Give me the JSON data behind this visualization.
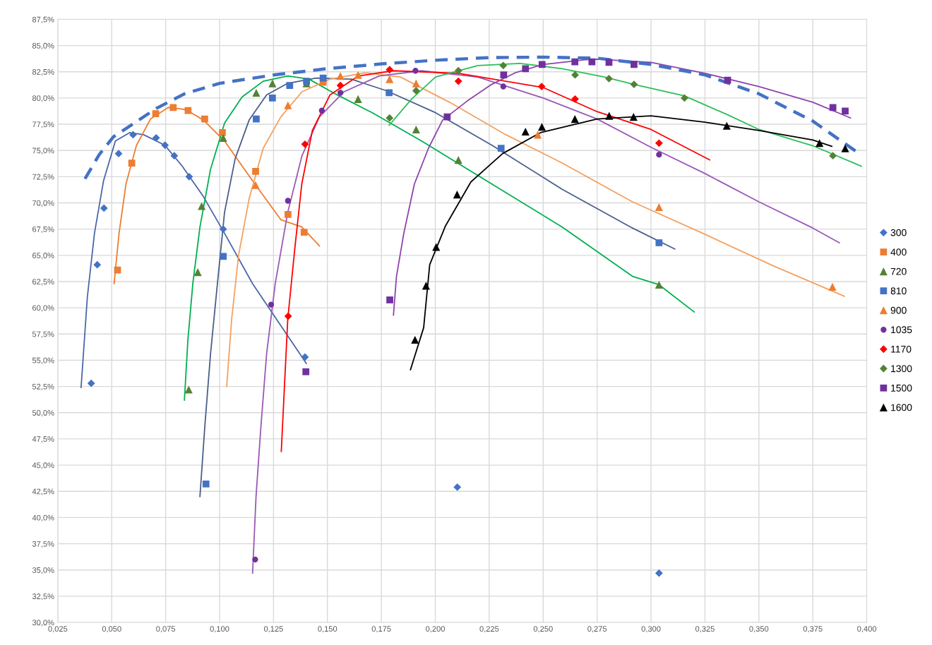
{
  "chart_data": {
    "type": "scatter",
    "grid": true,
    "legend": "right",
    "xlim": [
      0.025,
      0.4
    ],
    "xticks": [
      {
        "value": 0.025,
        "label": "0,025"
      },
      {
        "value": 0.05,
        "label": "0,050"
      },
      {
        "value": 0.075,
        "label": "0,075"
      },
      {
        "value": 0.1,
        "label": "0,100"
      },
      {
        "value": 0.125,
        "label": "0,125"
      },
      {
        "value": 0.15,
        "label": "0,150"
      },
      {
        "value": 0.175,
        "label": "0,175"
      },
      {
        "value": 0.2,
        "label": "0,200"
      },
      {
        "value": 0.225,
        "label": "0,225"
      },
      {
        "value": 0.25,
        "label": "0,250"
      },
      {
        "value": 0.275,
        "label": "0,275"
      },
      {
        "value": 0.3,
        "label": "0,300"
      },
      {
        "value": 0.325,
        "label": "0,325"
      },
      {
        "value": 0.35,
        "label": "0,350"
      },
      {
        "value": 0.375,
        "label": "0,375"
      },
      {
        "value": 0.4,
        "label": "0,400"
      }
    ],
    "ylim": [
      30,
      87.5
    ],
    "yticks": [
      {
        "value": 30,
        "label": "30,0%"
      },
      {
        "value": 32.5,
        "label": "32,5%"
      },
      {
        "value": 35,
        "label": "35,0%"
      },
      {
        "value": 37.5,
        "label": "37,5%"
      },
      {
        "value": 40,
        "label": "40,0%"
      },
      {
        "value": 42.5,
        "label": "42,5%"
      },
      {
        "value": 45,
        "label": "45,0%"
      },
      {
        "value": 47.5,
        "label": "47,5%"
      },
      {
        "value": 50,
        "label": "50,0%"
      },
      {
        "value": 52.5,
        "label": "52,5%"
      },
      {
        "value": 55,
        "label": "55,0%"
      },
      {
        "value": 57.5,
        "label": "57,5%"
      },
      {
        "value": 60,
        "label": "60,0%"
      },
      {
        "value": 62.5,
        "label": "62,5%"
      },
      {
        "value": 65,
        "label": "65,0%"
      },
      {
        "value": 67.5,
        "label": "67,5%"
      },
      {
        "value": 70,
        "label": "70,0%"
      },
      {
        "value": 72.5,
        "label": "72,5%"
      },
      {
        "value": 75,
        "label": "75,0%"
      },
      {
        "value": 77.5,
        "label": "77,5%"
      },
      {
        "value": 80,
        "label": "80,0%"
      },
      {
        "value": 82.5,
        "label": "82,5%"
      },
      {
        "value": 85,
        "label": "85,0%"
      },
      {
        "value": 87.5,
        "label": "87,5%"
      }
    ],
    "series": [
      {
        "type": "line",
        "color": "#4a67a8",
        "marker": "none",
        "x": [
          0.0358,
          0.0387,
          0.042,
          0.0462,
          0.0517,
          0.0583,
          0.0648,
          0.0746,
          0.0827,
          0.0925,
          0.1023,
          0.1153,
          0.1284,
          0.1402
        ],
        "values": [
          52.4,
          61.0,
          67.1,
          72.1,
          75.9,
          76.7,
          76.5,
          75.5,
          73.5,
          70.6,
          67.1,
          62.3,
          58.3,
          54.7
        ]
      },
      {
        "type": "line",
        "color": "#ed7d31",
        "marker": "none",
        "x": [
          0.0511,
          0.0534,
          0.0566,
          0.0615,
          0.068,
          0.0762,
          0.0843,
          0.0925,
          0.1023,
          0.1153,
          0.1284,
          0.1381,
          0.1463
        ],
        "values": [
          62.3,
          67.1,
          71.8,
          75.5,
          78.0,
          79.1,
          78.9,
          77.9,
          75.9,
          72.1,
          68.4,
          67.7,
          65.9
        ]
      },
      {
        "type": "line",
        "color": "#00b050",
        "marker": "none",
        "x": [
          0.0837,
          0.0853,
          0.0876,
          0.0909,
          0.0958,
          0.1023,
          0.1104,
          0.1202,
          0.1316,
          0.1414,
          0.1545,
          0.1708,
          0.1936,
          0.2262,
          0.2588,
          0.2914,
          0.3037,
          0.32
        ],
        "values": [
          51.2,
          56.9,
          62.3,
          67.7,
          73.2,
          77.6,
          80.1,
          81.6,
          82.1,
          81.8,
          80.3,
          78.6,
          75.9,
          71.8,
          67.7,
          63.0,
          62.2,
          59.6
        ]
      },
      {
        "type": "line",
        "color": "#4a5f8c",
        "marker": "none",
        "x": [
          0.0909,
          0.0932,
          0.0958,
          0.099,
          0.1023,
          0.1072,
          0.1137,
          0.1218,
          0.1316,
          0.1447,
          0.161,
          0.1773,
          0.2001,
          0.2262,
          0.2588,
          0.2914,
          0.311
        ],
        "values": [
          42.0,
          48.8,
          55.6,
          62.3,
          69.1,
          74.2,
          77.9,
          80.3,
          81.4,
          81.9,
          81.8,
          80.7,
          78.6,
          75.5,
          71.3,
          67.6,
          65.6
        ]
      },
      {
        "type": "line",
        "color": "#f4a160",
        "marker": "none",
        "x": [
          0.1033,
          0.1056,
          0.1088,
          0.1137,
          0.1202,
          0.1284,
          0.1382,
          0.1512,
          0.1675,
          0.1838,
          0.2066,
          0.2327,
          0.2588,
          0.2914,
          0.324,
          0.3566,
          0.3896
        ],
        "values": [
          52.5,
          58.9,
          65.0,
          70.4,
          75.2,
          78.2,
          80.6,
          81.8,
          82.4,
          82.0,
          79.6,
          76.5,
          73.8,
          70.1,
          67.1,
          64.0,
          61.1
        ]
      },
      {
        "type": "line",
        "color": "#9b59b6",
        "marker": "none",
        "x": [
          0.1153,
          0.1169,
          0.1192,
          0.1218,
          0.1258,
          0.1316,
          0.1382,
          0.1463,
          0.1577,
          0.174,
          0.1936,
          0.2197,
          0.25,
          0.275,
          0.3,
          0.325,
          0.35,
          0.375,
          0.3873
        ],
        "values": [
          34.7,
          42.0,
          48.8,
          55.6,
          62.3,
          69.1,
          74.5,
          78.2,
          80.6,
          82.1,
          82.6,
          82.0,
          80.0,
          78.0,
          75.3,
          72.8,
          70.1,
          67.6,
          66.2
        ]
      },
      {
        "type": "line",
        "color": "#ff0000",
        "marker": "none",
        "x": [
          0.1286,
          0.13,
          0.1316,
          0.1349,
          0.1381,
          0.143,
          0.1512,
          0.1642,
          0.1805,
          0.2107,
          0.25,
          0.275,
          0.3,
          0.3272
        ],
        "values": [
          46.3,
          52.2,
          58.9,
          65.7,
          71.8,
          76.9,
          80.3,
          82.1,
          82.6,
          82.35,
          81.0,
          78.7,
          77.0,
          74.1
        ]
      },
      {
        "type": "line",
        "color": "#2dbf5a",
        "marker": "none",
        "x": [
          0.1786,
          0.189,
          0.2001,
          0.2197,
          0.2392,
          0.2588,
          0.2784,
          0.2921,
          0.3155,
          0.3355,
          0.35,
          0.375,
          0.3975
        ],
        "values": [
          77.4,
          79.9,
          82.0,
          83.1,
          83.3,
          82.8,
          82.0,
          81.3,
          80.2,
          78.4,
          77.0,
          75.45,
          73.5
        ]
      },
      {
        "type": "line",
        "color": "#8e44ad",
        "marker": "none",
        "x": [
          0.1806,
          0.182,
          0.1854,
          0.1903,
          0.1968,
          0.2034,
          0.2147,
          0.2261,
          0.237,
          0.25,
          0.2696,
          0.275,
          0.3,
          0.325,
          0.35,
          0.375,
          0.3925
        ],
        "values": [
          59.3,
          63.0,
          67.1,
          71.8,
          75.2,
          77.9,
          79.7,
          81.3,
          82.4,
          83.2,
          83.65,
          83.7,
          83.4,
          82.35,
          81.1,
          79.6,
          78.1
        ]
      },
      {
        "type": "line",
        "color": "#000000",
        "marker": "none",
        "x": [
          0.1885,
          0.1946,
          0.1974,
          0.2047,
          0.2165,
          0.2312,
          0.2488,
          0.275,
          0.3,
          0.325,
          0.35,
          0.375,
          0.3838
        ],
        "values": [
          54.1,
          58.1,
          64.1,
          67.8,
          72.0,
          74.7,
          76.7,
          78.0,
          78.3,
          77.7,
          76.9,
          76.0,
          75.4
        ]
      },
      {
        "type": "line",
        "color": "#4472c4",
        "marker": "none",
        "line_style": "dashed",
        "x": [
          0.0376,
          0.0442,
          0.0508,
          0.0596,
          0.0706,
          0.0837,
          0.1,
          0.125,
          0.15,
          0.175,
          0.2,
          0.225,
          0.25,
          0.275,
          0.3,
          0.325,
          0.35,
          0.375,
          0.3965
        ],
        "values": [
          72.3,
          74.6,
          76.3,
          77.5,
          79.0,
          80.4,
          81.4,
          82.2,
          82.8,
          83.25,
          83.6,
          83.85,
          83.9,
          83.8,
          83.2,
          82.2,
          80.4,
          77.8,
          74.7
        ]
      },
      {
        "name": "300",
        "color": "#4472c4",
        "marker": "diamond",
        "x": [
          0.0405,
          0.0433,
          0.0464,
          0.0532,
          0.0599,
          0.0706,
          0.0747,
          0.079,
          0.0859,
          0.1017,
          0.1396,
          0.2102,
          0.3037
        ],
        "values": [
          52.8,
          64.1,
          69.5,
          74.7,
          76.5,
          76.2,
          75.5,
          74.5,
          72.5,
          67.5,
          55.3,
          42.9,
          34.7
        ]
      },
      {
        "name": "400",
        "color": "#ed7d31",
        "marker": "square",
        "x": [
          0.0527,
          0.0593,
          0.0704,
          0.0785,
          0.0854,
          0.0931,
          0.1013,
          0.1167,
          0.1317,
          0.1392,
          0.148
        ],
        "values": [
          63.6,
          73.8,
          78.5,
          79.1,
          78.8,
          78.0,
          76.7,
          73.0,
          68.9,
          67.2,
          81.5
        ]
      },
      {
        "name": "720",
        "color": "#548235",
        "marker": "triangle",
        "x": [
          0.0857,
          0.0899,
          0.0917,
          0.1017,
          0.117,
          0.1245,
          0.1403,
          0.1642,
          0.1911,
          0.2107,
          0.3037
        ],
        "values": [
          52.2,
          63.4,
          69.7,
          76.2,
          80.5,
          81.4,
          81.4,
          79.9,
          77.0,
          74.1,
          62.2
        ]
      },
      {
        "name": "810",
        "color": "#4472c4",
        "marker": "square",
        "x": [
          0.0937,
          0.1017,
          0.117,
          0.1245,
          0.1325,
          0.1403,
          0.148,
          0.1786,
          0.2305,
          0.3037
        ],
        "values": [
          43.2,
          64.9,
          78.0,
          80.0,
          81.2,
          81.6,
          81.9,
          80.5,
          75.2,
          66.2
        ]
      },
      {
        "name": "900",
        "color": "#ed7d31",
        "marker": "triangle",
        "x": [
          0.1167,
          0.1317,
          0.156,
          0.1642,
          0.1788,
          0.1911,
          0.2475,
          0.3037,
          0.3841
        ],
        "values": [
          71.7,
          79.3,
          82.1,
          82.2,
          81.8,
          81.4,
          76.5,
          69.6,
          62.0
        ]
      },
      {
        "name": "1035",
        "color": "#7030a0",
        "marker": "circle",
        "x": [
          0.1165,
          0.1239,
          0.1317,
          0.1474,
          0.156,
          0.1908,
          0.2315,
          0.3037
        ],
        "values": [
          36.0,
          60.3,
          70.2,
          78.8,
          80.5,
          82.6,
          81.1,
          74.6
        ]
      },
      {
        "name": "1170",
        "color": "#ff0000",
        "marker": "diamond",
        "x": [
          0.1318,
          0.1396,
          0.156,
          0.1788,
          0.2107,
          0.2493,
          0.2648,
          0.3037
        ],
        "values": [
          59.2,
          75.6,
          81.2,
          82.7,
          81.6,
          81.1,
          79.9,
          75.7
        ]
      },
      {
        "name": "1300",
        "color": "#548235",
        "marker": "diamond",
        "x": [
          0.1788,
          0.1911,
          0.2107,
          0.2315,
          0.2648,
          0.2805,
          0.2921,
          0.3155,
          0.3843
        ],
        "values": [
          78.1,
          80.7,
          82.6,
          83.1,
          82.2,
          81.85,
          81.3,
          80.0,
          74.5
        ]
      },
      {
        "name": "1500",
        "color": "#7030a0",
        "marker": "square",
        "x": [
          0.14,
          0.1789,
          0.2055,
          0.2317,
          0.2418,
          0.2495,
          0.2647,
          0.2726,
          0.2805,
          0.2921,
          0.3355,
          0.3843,
          0.39
        ],
        "values": [
          53.9,
          60.75,
          78.2,
          82.2,
          82.8,
          83.2,
          83.45,
          83.45,
          83.4,
          83.2,
          81.7,
          79.1,
          78.75
        ]
      },
      {
        "name": "1600",
        "color": "#000000",
        "marker": "triangle",
        "x": [
          0.1906,
          0.1957,
          0.2004,
          0.2101,
          0.2418,
          0.2494,
          0.2647,
          0.2806,
          0.2919,
          0.3351,
          0.3781,
          0.39
        ],
        "values": [
          56.95,
          62.1,
          65.8,
          70.8,
          76.8,
          77.25,
          78.0,
          78.3,
          78.2,
          77.35,
          75.7,
          75.2
        ]
      }
    ]
  }
}
